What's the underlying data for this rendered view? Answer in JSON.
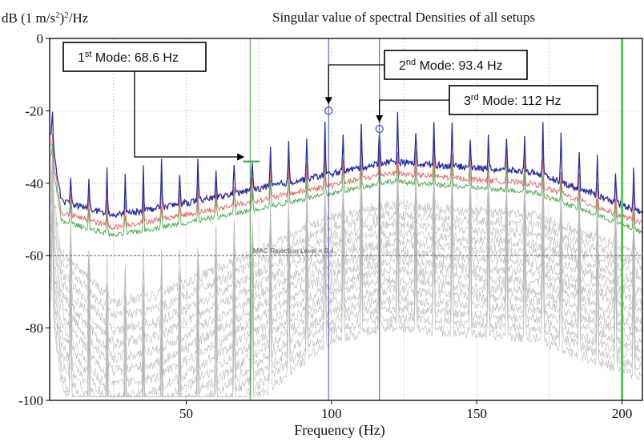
{
  "chart_data": {
    "type": "line",
    "title": "Singular value of spectral Densities of all setups",
    "ylabel": "dB (1 m/s²)²/Hz",
    "xlabel": "Frequency (Hz)",
    "xlim": [
      3,
      207
    ],
    "ylim": [
      -100,
      0
    ],
    "x_ticks": [
      50,
      100,
      150,
      200
    ],
    "y_ticks": [
      0,
      -20,
      -40,
      -60,
      -80,
      -100
    ],
    "grid": true,
    "series": [
      {
        "color": "#2b2f9e",
        "role": "first singular value"
      },
      {
        "color": "#e46b6b",
        "role": "second singular value"
      },
      {
        "color": "#4fa84f",
        "role": "third singular value"
      },
      {
        "color": "#b9b9b9",
        "role": "remaining singular values"
      }
    ],
    "peak_spacing_hz": 6.25,
    "mac_rejection": {
      "label": "MAC Rejection Level = 0.4",
      "y": -60
    },
    "modes": [
      {
        "prefix": "1",
        "sup": "st",
        "label": " Mode: 68.6 Hz",
        "x": 72,
        "y": -34
      },
      {
        "prefix": "2",
        "sup": "nd",
        "label": " Mode: 93.4 Hz",
        "x": 99,
        "y": -20
      },
      {
        "prefix": "3",
        "sup": "rd",
        "label": " Mode: 112 Hz",
        "x": 116.5,
        "y": -25
      }
    ],
    "vertical_markers": [
      {
        "x": 72,
        "color": "#3f9a3f"
      },
      {
        "x": 99,
        "color": "#3f49c4"
      },
      {
        "x": 116.5,
        "color": "#3f49c4"
      },
      {
        "x": 200,
        "color": "#55c655"
      }
    ]
  }
}
